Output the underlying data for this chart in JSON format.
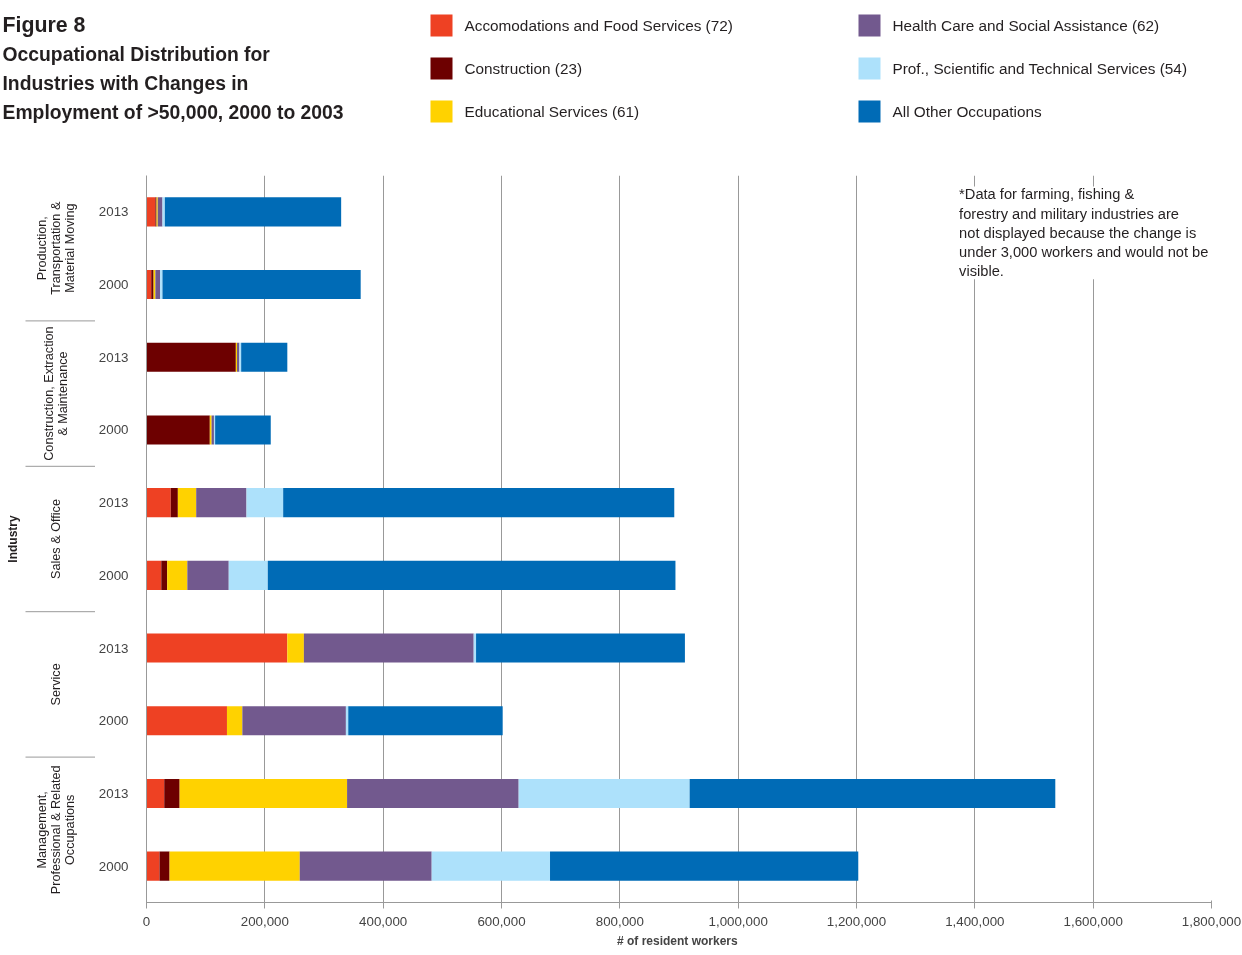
{
  "chart_data": {
    "type": "bar",
    "orientation": "horizontal",
    "stacked": true,
    "title": "Figure 8",
    "subtitle": "Occupational Distribution for Industries with Changes in Employment of >50,000, 2000 to 2003",
    "xlabel": "# of resident  workers",
    "categories": [
      "2013",
      "2000",
      "2013",
      "2000",
      "2013",
      "2000",
      "2013",
      "2000",
      "2013",
      "2000"
    ],
    "series": [
      {
        "name": "Accomodations and Food Services (72)",
        "color": "#ee4123",
        "values": [
          15000,
          8000,
          0,
          0,
          41000,
          25000,
          238000,
          136000,
          30000,
          22000
        ]
      },
      {
        "name": "Construction (23)",
        "color": "#6d0000",
        "values": [
          2000,
          4000,
          151000,
          107000,
          12000,
          10000,
          0,
          0,
          26000,
          17000
        ]
      },
      {
        "name": "Educational Services (61)",
        "color": "#ffd200",
        "values": [
          2000,
          3000,
          2000,
          3000,
          31000,
          34000,
          28000,
          26000,
          283000,
          220000
        ]
      },
      {
        "name": "Health Care and Social Assistance (62)",
        "color": "#72598e",
        "values": [
          8000,
          8000,
          4000,
          4000,
          85000,
          70000,
          287000,
          175000,
          290000,
          223000
        ]
      },
      {
        "name": "Prof., Scientific and Technical Services (54)",
        "color": "#ade1fb",
        "values": [
          4000,
          4000,
          3000,
          2000,
          62000,
          66000,
          4000,
          4000,
          289000,
          200000
        ]
      },
      {
        "name": "All Other Occupations",
        "color": "#006bb6",
        "values": [
          298000,
          335000,
          78000,
          94000,
          661000,
          689000,
          353000,
          261000,
          618000,
          521000
        ]
      }
    ],
    "xlim": [
      0,
      1800000
    ],
    "xticks": [
      0,
      {
        "value": 200000,
        "label": "200,000"
      },
      {
        "value": 400000,
        "label": "400,000"
      },
      {
        "value": 600000,
        "label": "600,000"
      },
      {
        "value": 800000,
        "label": "800,000"
      },
      {
        "value": 1000000,
        "label": "1,000,000"
      },
      {
        "value": 1200000,
        "label": "1,200,000"
      },
      {
        "value": 1400000,
        "label": "1,400,000"
      },
      {
        "value": 1600000,
        "label": "1,600,000"
      },
      {
        "value": 1800000,
        "label": "1,800,000"
      }
    ],
    "grid": "x",
    "legend": "top",
    "annotations": [
      "*Data for farming, fishing & forestry and military industries are not displayed because the change is under 3,000 workers and would not be visible.",
      "Production,\nTransportation &\nMaterial Moving",
      "Construction, Extraction\n& Maintenance",
      "Sales & Office",
      "Service",
      "Management,\nProfessional & Related\nOccupations",
      "Industry"
    ]
  }
}
